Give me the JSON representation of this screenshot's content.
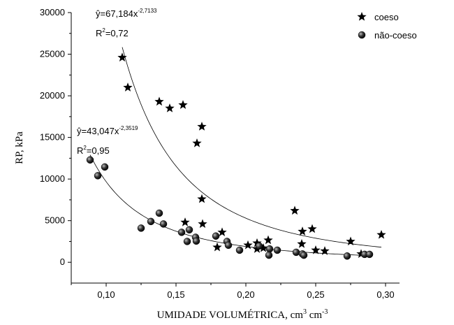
{
  "chart_data": {
    "type": "scatter",
    "ylabel": "RP, kPa",
    "xlabel": [
      {
        "text": "UMIDADE VOLUMÉTRICA, cm"
      },
      {
        "sup": "3"
      },
      {
        "text": " cm"
      },
      {
        "sup": "-3"
      }
    ],
    "xlim": [
      0.075,
      0.31
    ],
    "ylim": [
      -2500,
      30000
    ],
    "xticks": [
      {
        "value": 0.1,
        "label": "0,10"
      },
      {
        "value": 0.15,
        "label": "0,15"
      },
      {
        "value": 0.2,
        "label": "0,20"
      },
      {
        "value": 0.25,
        "label": "0,25"
      },
      {
        "value": 0.3,
        "label": "0,30"
      }
    ],
    "yticks": [
      0,
      5000,
      10000,
      15000,
      20000,
      25000,
      30000
    ],
    "legend": "top-right",
    "series": [
      {
        "name": "coeso",
        "marker": "star",
        "color": "#000000",
        "fit": {
          "a": 67.184,
          "b": -2.7133,
          "r2": 0.72
        },
        "annotation": [
          {
            "text": "ŷ=67,184x",
            "sup": "-2,7133"
          },
          {
            "text": "R",
            "sup": "2",
            "tail": "=0,72"
          }
        ],
        "x": [
          0.1115,
          0.1155,
          0.138,
          0.1455,
          0.155,
          0.1685,
          0.165,
          0.1685,
          0.169,
          0.1565,
          0.183,
          0.1795,
          0.2015,
          0.208,
          0.208,
          0.216,
          0.2125,
          0.235,
          0.24,
          0.2405,
          0.2475,
          0.25,
          0.2565,
          0.275,
          0.2825,
          0.297
        ],
        "values": [
          24600,
          21000,
          19300,
          18500,
          18900,
          16300,
          14300,
          7600,
          4600,
          4800,
          3600,
          1800,
          2050,
          2300,
          1600,
          2650,
          1700,
          6200,
          2200,
          3700,
          4000,
          1450,
          1350,
          2500,
          1000,
          3300
        ]
      },
      {
        "name": "não-coeso",
        "marker": "sphere",
        "color": "#000000",
        "fit": {
          "a": 43.047,
          "b": -2.3519,
          "r2": 0.95
        },
        "annotation": [
          {
            "text": "ŷ=43,047x",
            "sup": "-2,3519"
          },
          {
            "text": "R",
            "sup": "2",
            "tail": "=0,95"
          }
        ],
        "x": [
          0.0885,
          0.094,
          0.099,
          0.125,
          0.132,
          0.138,
          0.141,
          0.154,
          0.158,
          0.1595,
          0.164,
          0.1645,
          0.1785,
          0.1865,
          0.1875,
          0.1955,
          0.2095,
          0.217,
          0.2165,
          0.2225,
          0.236,
          0.2405,
          0.2415,
          0.2725,
          0.285,
          0.2885
        ],
        "values": [
          12300,
          10400,
          11450,
          4100,
          4900,
          5900,
          4600,
          3600,
          2500,
          3900,
          3000,
          2550,
          3150,
          2500,
          2050,
          1450,
          1950,
          1600,
          850,
          1450,
          1200,
          1000,
          850,
          750,
          950,
          950
        ]
      }
    ]
  }
}
